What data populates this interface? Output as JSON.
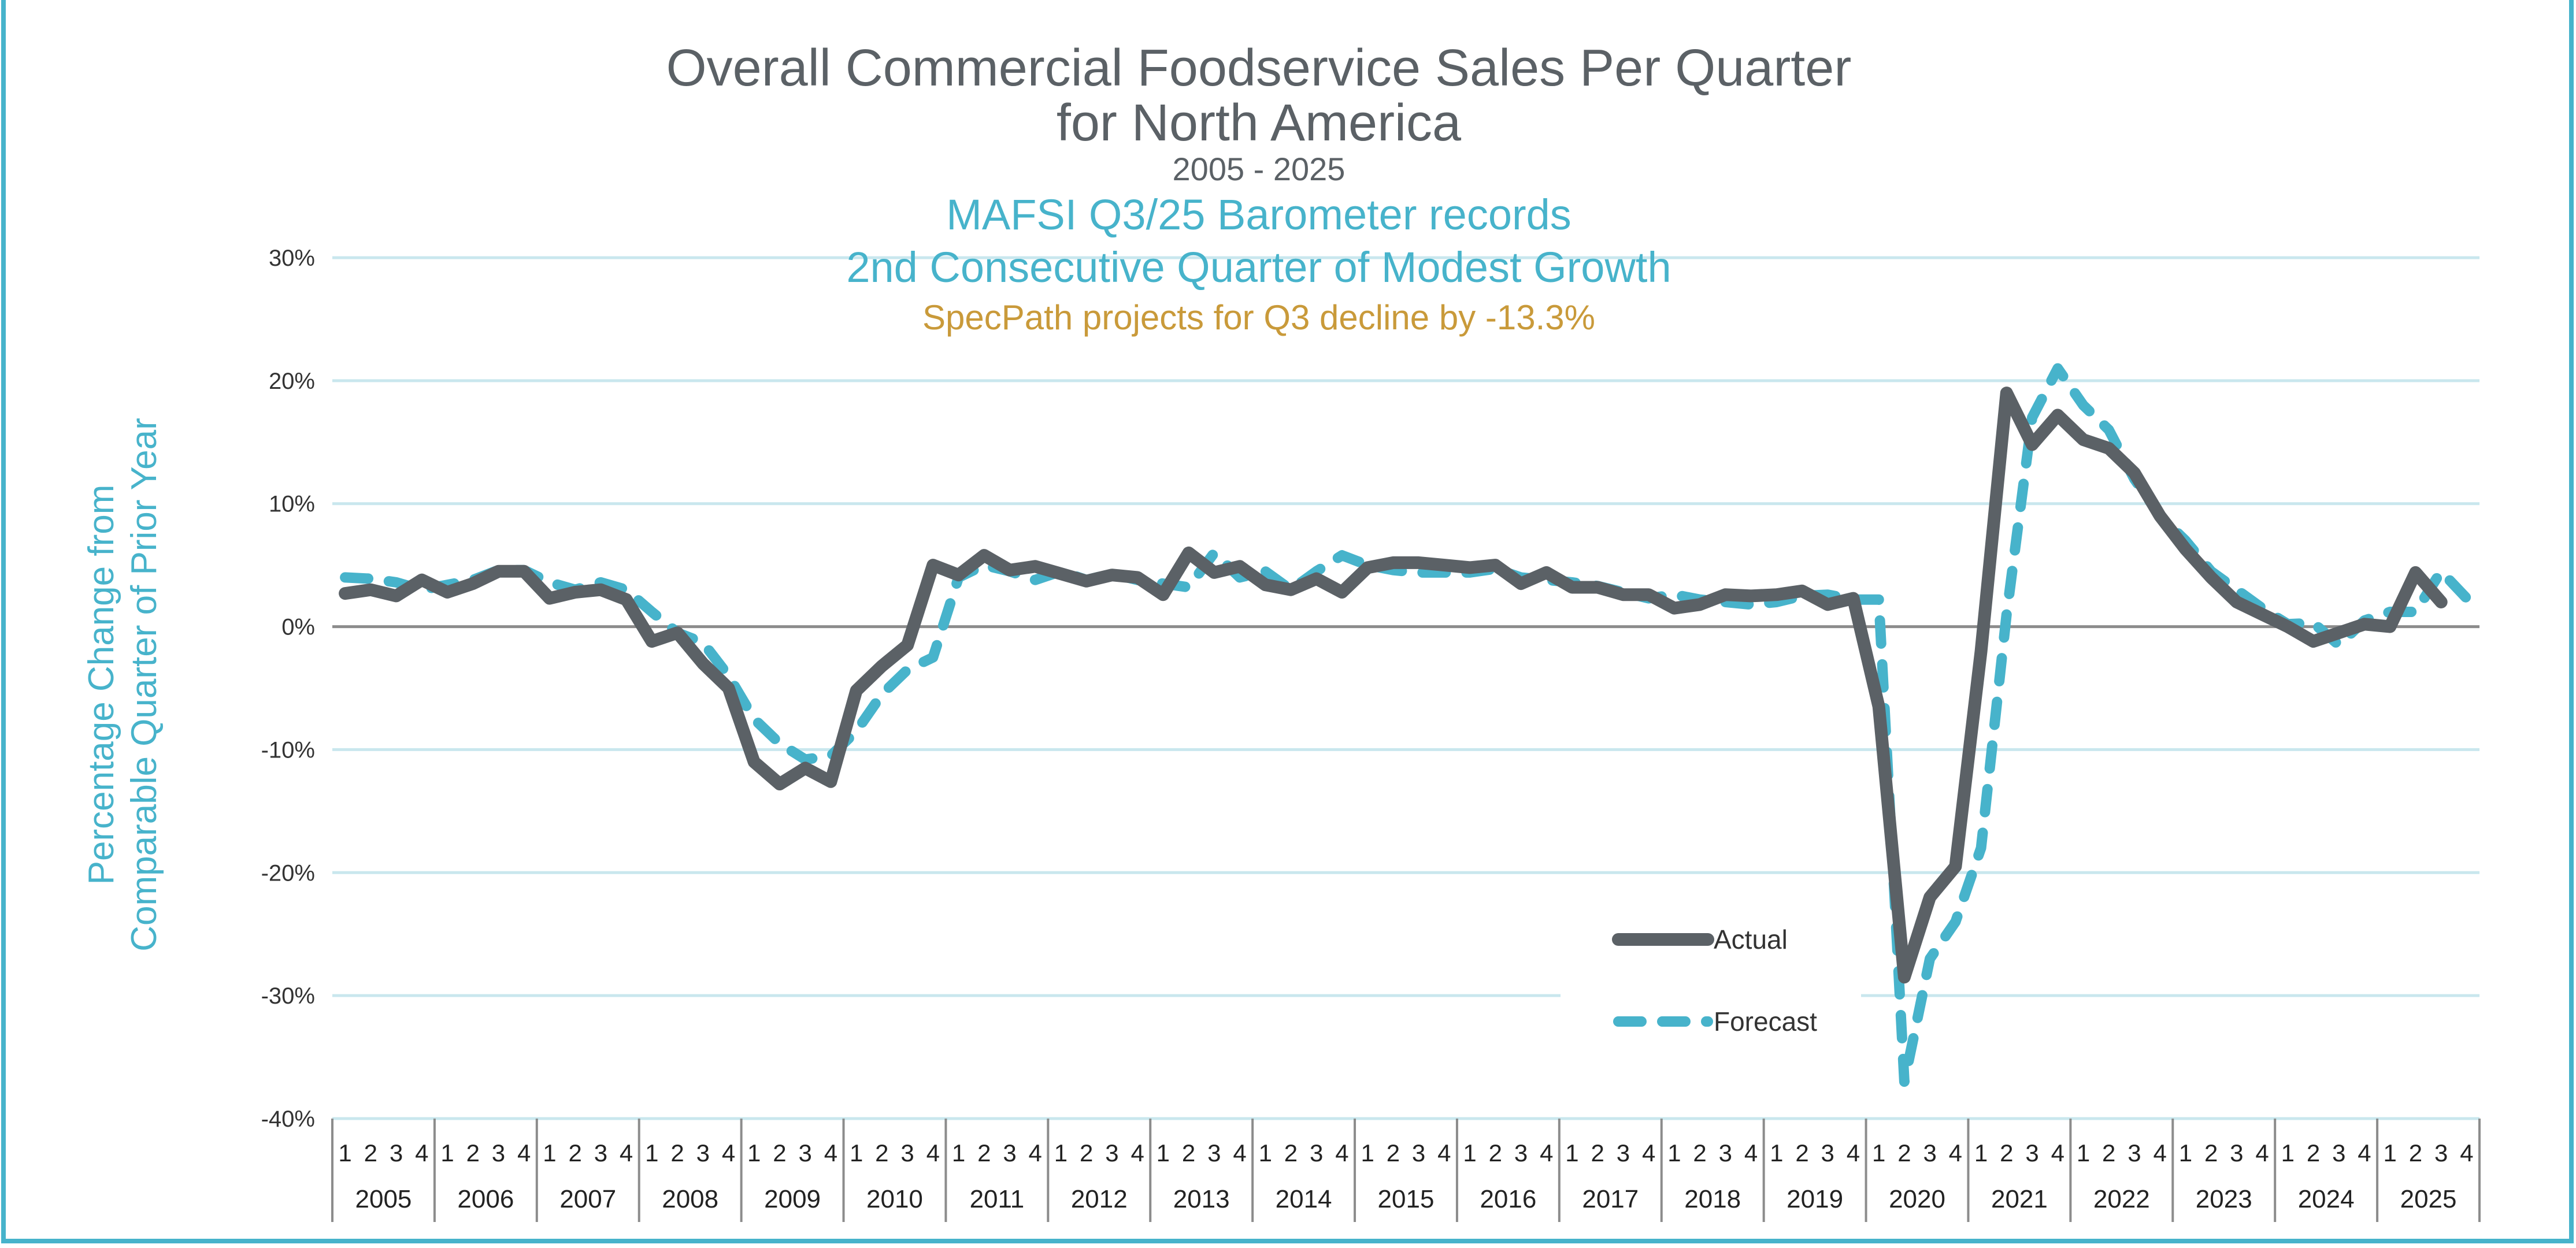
{
  "chart_data": {
    "type": "line",
    "title": "Overall Commercial Foodservice Sales Per Quarter",
    "title_line2": "for North America",
    "subtitle": "2005 - 2025",
    "headline1": "MAFSI Q3/25 Barometer records",
    "headline2": "2nd Consecutive Quarter of Modest Growth",
    "note": "SpecPath projects for Q3 decline by -13.3%",
    "ylabel_line1": "Percentage Change from",
    "ylabel_line2": "Comparable Quarter of Prior Year",
    "ylim": [
      -40,
      30
    ],
    "yticks": [
      "30%",
      "20%",
      "10%",
      "0%",
      "-10%",
      "-20%",
      "-30%",
      "-40%"
    ],
    "ytick_values": [
      30,
      20,
      10,
      0,
      -10,
      -20,
      -30,
      -40
    ],
    "years": [
      "2005",
      "2006",
      "2007",
      "2008",
      "2009",
      "2010",
      "2011",
      "2012",
      "2013",
      "2014",
      "2015",
      "2016",
      "2017",
      "2018",
      "2019",
      "2020",
      "2021",
      "2022",
      "2023",
      "2024",
      "2025"
    ],
    "quarters": [
      "1",
      "2",
      "3",
      "4"
    ],
    "grid": true,
    "legend_position": "bottom-center",
    "colors": {
      "actual": "#5b6166",
      "forecast": "#47b3cb",
      "grid": "#c9e7ee",
      "zero": "#8c8c8c",
      "title": "#5b6166",
      "headline": "#47b3cb",
      "note": "#c99a3a",
      "frame": "#47b3cb"
    },
    "series": [
      {
        "name": "Actual",
        "style": "solid",
        "values": [
          2.7,
          3.0,
          2.5,
          3.8,
          2.8,
          3.5,
          4.5,
          4.5,
          2.3,
          2.8,
          3.0,
          2.2,
          -1.2,
          -0.5,
          -3.0,
          -5.0,
          -11.0,
          -12.8,
          -11.5,
          -12.6,
          -5.2,
          -3.2,
          -1.5,
          5.0,
          4.2,
          5.8,
          4.6,
          4.9,
          4.3,
          3.7,
          4.2,
          4.0,
          2.6,
          6.0,
          4.4,
          4.9,
          3.4,
          3.0,
          3.9,
          2.8,
          4.8,
          5.2,
          5.2,
          5.0,
          4.8,
          5.0,
          3.5,
          4.4,
          3.2,
          3.2,
          2.6,
          2.6,
          1.5,
          1.8,
          2.6,
          2.5,
          2.6,
          2.9,
          1.8,
          2.3,
          -6.5,
          -28.5,
          -22.0,
          -19.5,
          -2.0,
          19.0,
          14.8,
          17.2,
          15.2,
          14.5,
          12.5,
          9.0,
          6.3,
          4.0,
          2.0,
          1.0,
          0.0,
          -1.2,
          -0.5,
          0.2,
          0.0,
          4.4,
          2.0
        ]
      },
      {
        "name": "Forecast",
        "style": "dashed",
        "values": [
          4.0,
          3.9,
          3.6,
          3.0,
          3.4,
          3.8,
          4.6,
          4.6,
          3.6,
          3.0,
          3.6,
          3.0,
          1.2,
          -0.5,
          -1.3,
          -4.0,
          -7.5,
          -9.5,
          -10.8,
          -10.5,
          -8.5,
          -5.5,
          -3.5,
          -2.5,
          4.0,
          5.0,
          4.5,
          3.8,
          4.5,
          3.8,
          4.3,
          3.8,
          3.5,
          3.2,
          6.0,
          4.0,
          4.5,
          3.0,
          4.5,
          5.8,
          5.0,
          4.6,
          4.4,
          4.4,
          4.4,
          4.7,
          4.0,
          3.8,
          3.6,
          3.3,
          2.8,
          2.3,
          2.6,
          2.2,
          2.0,
          1.8,
          2.0,
          2.5,
          2.6,
          2.2,
          2.2,
          -37.0,
          -27.0,
          -24.0,
          -18.0,
          1.0,
          17.0,
          21.0,
          18.0,
          16.0,
          12.0,
          9.0,
          7.0,
          4.5,
          3.0,
          1.5,
          0.2,
          0.3,
          -1.5,
          0.5,
          1.2,
          1.2,
          4.5,
          2.3
        ]
      }
    ]
  }
}
